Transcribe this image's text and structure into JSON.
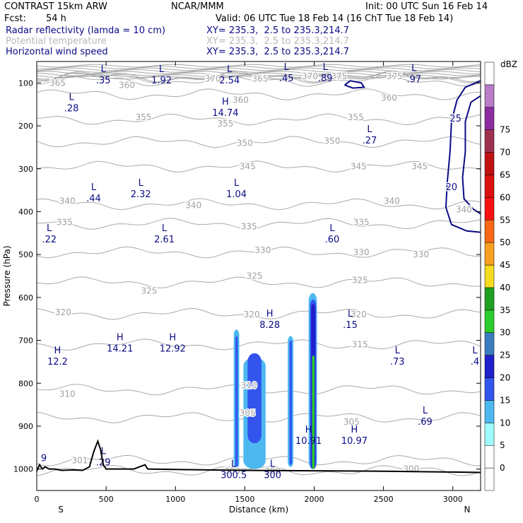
{
  "header": {
    "model": "CONTRAST 15km ARW",
    "org": "NCAR/MMM",
    "init": "Init: 00 UTC Sun 16 Feb 14",
    "fcst_label": "Fcst:",
    "fcst_value": "54 h",
    "valid": "Valid: 06 UTC Tue 18 Feb 14 (16 ChT Tue 18 Feb 14)",
    "fields": [
      {
        "name": "Radar reflectivity (lamda = 10 cm)",
        "xy": "XY= 235.3,  2.5 to 235.3,214.7",
        "color": "#0b0b86"
      },
      {
        "name": "Potential temperature",
        "xy": "XY= 235.3,  2.5 to 235.3,214.7",
        "color": "#b8b8b8"
      },
      {
        "name": "Horizontal wind speed",
        "xy": "XY= 235.3,  2.5 to 235.3,214.7",
        "color": "#0b0b86"
      }
    ]
  },
  "chart_data": {
    "type": "heatmap",
    "xlabel": "Distance (km)",
    "ylabel": "Pressure (hPa)",
    "xlim": [
      0,
      3200
    ],
    "ylim": [
      1050,
      50
    ],
    "x_ticks": [
      0,
      500,
      1000,
      1500,
      2000,
      2500,
      3000
    ],
    "y_ticks": [
      100,
      200,
      300,
      400,
      500,
      600,
      700,
      800,
      900,
      1000
    ],
    "x_end_labels": {
      "left": "S",
      "right": "N"
    },
    "colorbar": {
      "unit": "dBZ",
      "levels": [
        0,
        5,
        10,
        15,
        20,
        25,
        30,
        35,
        40,
        45,
        50,
        55,
        60,
        65,
        70,
        75
      ],
      "colors": [
        "#ffffff",
        "#ffffff",
        "#9ffcfc",
        "#4db8f0",
        "#3355ee",
        "#2020cc",
        "#3a7cc0",
        "#2ccc2c",
        "#20a020",
        "#f4dc20",
        "#f8a020",
        "#f86818",
        "#f81010",
        "#dc1010",
        "#c01010",
        "#a03050",
        "#8c2ca0",
        "#b87cc8",
        "#ffffff"
      ]
    },
    "wind_contours": [
      {
        "label": "25",
        "x": 3020,
        "p": 190
      },
      {
        "label": "20",
        "x": 2990,
        "p": 350
      }
    ],
    "theta_labels": [
      {
        "v": "365",
        "x": 150,
        "p": 100
      },
      {
        "v": "360",
        "x": 650,
        "p": 105
      },
      {
        "v": "370",
        "x": 1270,
        "p": 90
      },
      {
        "v": "365",
        "x": 1610,
        "p": 90
      },
      {
        "v": "370",
        "x": 1970,
        "p": 85
      },
      {
        "v": "375",
        "x": 2180,
        "p": 85
      },
      {
        "v": "375",
        "x": 2580,
        "p": 85
      },
      {
        "v": "360",
        "x": 1470,
        "p": 140
      },
      {
        "v": "360",
        "x": 2540,
        "p": 135
      },
      {
        "v": "355",
        "x": 770,
        "p": 180
      },
      {
        "v": "355",
        "x": 1360,
        "p": 195
      },
      {
        "v": "355",
        "x": 2300,
        "p": 180
      },
      {
        "v": "350",
        "x": 1500,
        "p": 240
      },
      {
        "v": "350",
        "x": 2130,
        "p": 235
      },
      {
        "v": "345",
        "x": 1520,
        "p": 295
      },
      {
        "v": "345",
        "x": 2320,
        "p": 295
      },
      {
        "v": "345",
        "x": 2760,
        "p": 295
      },
      {
        "v": "340",
        "x": 220,
        "p": 375
      },
      {
        "v": "340",
        "x": 1130,
        "p": 385
      },
      {
        "v": "340",
        "x": 2560,
        "p": 375
      },
      {
        "v": "340",
        "x": 3080,
        "p": 395
      },
      {
        "v": "335",
        "x": 200,
        "p": 425
      },
      {
        "v": "335",
        "x": 1530,
        "p": 435
      },
      {
        "v": "335",
        "x": 2340,
        "p": 425
      },
      {
        "v": "330",
        "x": 1630,
        "p": 490
      },
      {
        "v": "330",
        "x": 2340,
        "p": 495
      },
      {
        "v": "330",
        "x": 2770,
        "p": 500
      },
      {
        "v": "325",
        "x": 1570,
        "p": 550
      },
      {
        "v": "325",
        "x": 2330,
        "p": 560
      },
      {
        "v": "325",
        "x": 810,
        "p": 585
      },
      {
        "v": "320",
        "x": 190,
        "p": 635
      },
      {
        "v": "320",
        "x": 1550,
        "p": 640
      },
      {
        "v": "320",
        "x": 2320,
        "p": 640
      },
      {
        "v": "315",
        "x": 2330,
        "p": 710
      },
      {
        "v": "310",
        "x": 220,
        "p": 825
      },
      {
        "v": "310",
        "x": 1530,
        "p": 805
      },
      {
        "v": "305",
        "x": 1520,
        "p": 870
      },
      {
        "v": "305",
        "x": 2270,
        "p": 890
      },
      {
        "v": "301.",
        "x": 320,
        "p": 980
      },
      {
        "v": "300",
        "x": 1410,
        "p": 1005
      },
      {
        "v": "300",
        "x": 1700,
        "p": 1005
      },
      {
        "v": "300",
        "x": 2700,
        "p": 1000
      }
    ],
    "extrema": [
      {
        "t": "L",
        "v": ".35",
        "x": 480,
        "p": 85
      },
      {
        "t": "L",
        "v": "1.92",
        "x": 900,
        "p": 85
      },
      {
        "t": "L",
        "v": "2.54",
        "x": 1390,
        "p": 85
      },
      {
        "t": "L",
        "v": ".45",
        "x": 1800,
        "p": 80
      },
      {
        "t": "L",
        "v": ".89",
        "x": 2080,
        "p": 80
      },
      {
        "t": "L",
        "v": ".97",
        "x": 2720,
        "p": 82
      },
      {
        "t": "L",
        "v": ".28",
        "x": 250,
        "p": 150
      },
      {
        "t": "H",
        "v": "14.74",
        "x": 1360,
        "p": 160
      },
      {
        "t": "L",
        "v": ".27",
        "x": 2400,
        "p": 225
      },
      {
        "t": "L",
        "v": ".44",
        "x": 410,
        "p": 360
      },
      {
        "t": "L",
        "v": "2.32",
        "x": 750,
        "p": 350
      },
      {
        "t": "L",
        "v": "1.04",
        "x": 1440,
        "p": 350
      },
      {
        "t": "L",
        "v": ".22",
        "x": 90,
        "p": 455
      },
      {
        "t": "L",
        "v": "2.61",
        "x": 920,
        "p": 455
      },
      {
        "t": "L",
        "v": ".60",
        "x": 2130,
        "p": 455
      },
      {
        "t": "H",
        "v": "8.28",
        "x": 1680,
        "p": 655
      },
      {
        "t": "L",
        "v": ".15",
        "x": 2260,
        "p": 655
      },
      {
        "t": "H",
        "v": "14.21",
        "x": 600,
        "p": 710
      },
      {
        "t": "H",
        "v": "12.92",
        "x": 980,
        "p": 710
      },
      {
        "t": "H",
        "v": "12.2",
        "x": 150,
        "p": 740
      },
      {
        "t": "L",
        "v": ".73",
        "x": 2600,
        "p": 740
      },
      {
        "t": "L",
        "v": ".4",
        "x": 3180,
        "p": 740
      },
      {
        "t": "L",
        "v": ".69",
        "x": 2800,
        "p": 880
      },
      {
        "t": "H",
        "v": "10.91",
        "x": 1960,
        "p": 925
      },
      {
        "t": "H",
        "v": "10.97",
        "x": 2290,
        "p": 925
      },
      {
        "t": "",
        "v": "9",
        "x": 20,
        "p": 965
      },
      {
        "t": "L",
        "v": ".29",
        "x": 480,
        "p": 975
      },
      {
        "t": "L",
        "v": "300.5",
        "x": 1420,
        "p": 1005
      },
      {
        "t": "L",
        "v": "300",
        "x": 1700,
        "p": 1005
      }
    ],
    "reflectivity_cells": [
      {
        "x0": 1420,
        "x1": 1460,
        "ptop": 675,
        "pbot": 1000,
        "dbz": 8
      },
      {
        "x0": 1432,
        "x1": 1450,
        "ptop": 690,
        "pbot": 995,
        "dbz": 14
      },
      {
        "x0": 1490,
        "x1": 1650,
        "ptop": 740,
        "pbot": 1000,
        "dbz": 8
      },
      {
        "x0": 1520,
        "x1": 1620,
        "ptop": 730,
        "pbot": 940,
        "dbz": 12
      },
      {
        "x0": 1810,
        "x1": 1850,
        "ptop": 690,
        "pbot": 995,
        "dbz": 8
      },
      {
        "x0": 1822,
        "x1": 1840,
        "ptop": 700,
        "pbot": 990,
        "dbz": 12
      },
      {
        "x0": 1960,
        "x1": 2020,
        "ptop": 590,
        "pbot": 1000,
        "dbz": 8
      },
      {
        "x0": 1970,
        "x1": 2015,
        "ptop": 605,
        "pbot": 1000,
        "dbz": 12
      },
      {
        "x0": 1978,
        "x1": 2008,
        "ptop": 615,
        "pbot": 1000,
        "dbz": 18
      },
      {
        "x0": 1985,
        "x1": 2003,
        "ptop": 735,
        "pbot": 1000,
        "dbz": 27
      }
    ],
    "terrain": [
      [
        0,
        1005
      ],
      [
        20,
        990
      ],
      [
        40,
        1000
      ],
      [
        60,
        995
      ],
      [
        90,
        1000
      ],
      [
        130,
        1000
      ],
      [
        180,
        1003
      ],
      [
        260,
        1002
      ],
      [
        330,
        1003
      ],
      [
        380,
        995
      ],
      [
        410,
        960
      ],
      [
        440,
        935
      ],
      [
        460,
        955
      ],
      [
        480,
        990
      ],
      [
        500,
        1000
      ],
      [
        700,
        1000
      ],
      [
        780,
        990
      ],
      [
        800,
        1000
      ],
      [
        1000,
        1001
      ],
      [
        1500,
        1003
      ],
      [
        2000,
        1004
      ],
      [
        2500,
        1005
      ],
      [
        3000,
        1007
      ],
      [
        3200,
        1008
      ]
    ]
  }
}
